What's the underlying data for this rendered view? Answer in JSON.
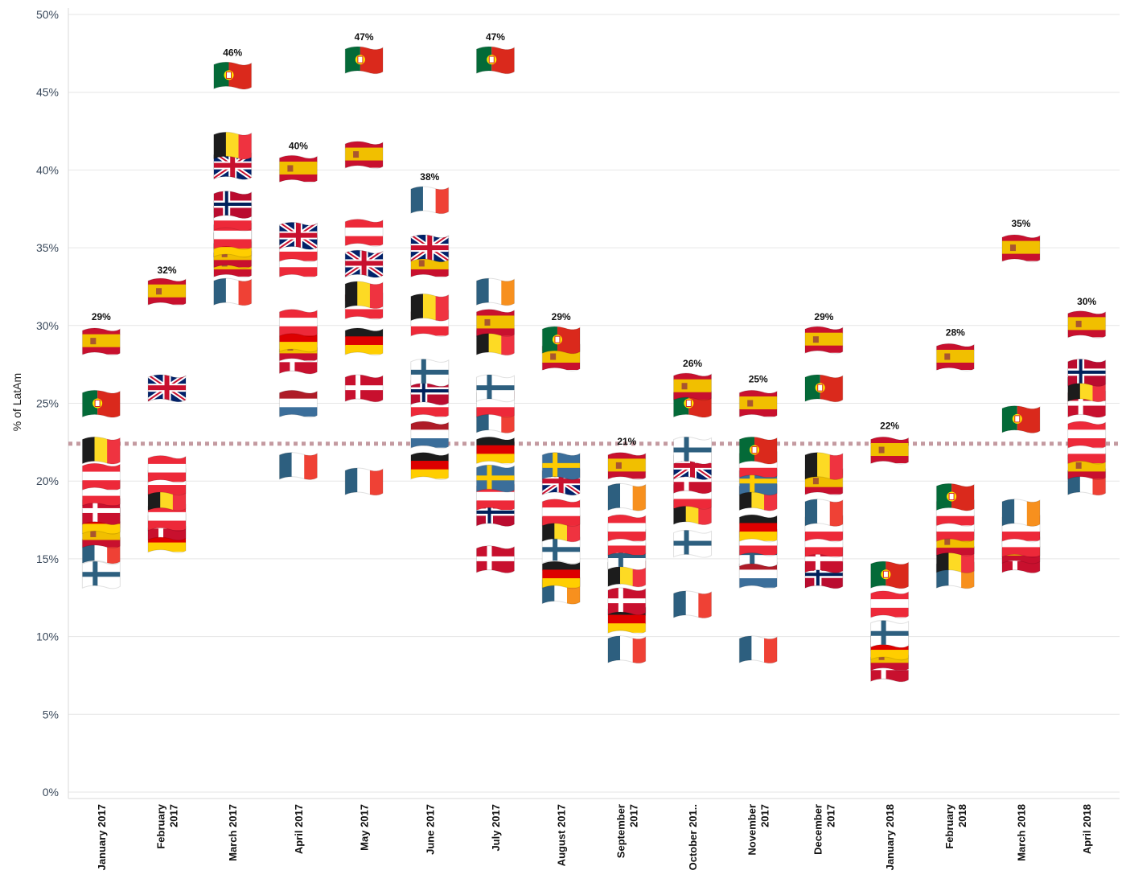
{
  "chart_data": {
    "type": "scatter",
    "ylabel": "% of LatAm",
    "ylim": [
      0,
      50
    ],
    "yticks": [
      "0%",
      "5%",
      "10%",
      "15%",
      "20%",
      "25%",
      "30%",
      "35%",
      "40%",
      "45%",
      "50%"
    ],
    "grid": true,
    "reference_line_value": 22.4,
    "reference_line_color": "#c49aa0",
    "categories": [
      {
        "label": [
          "January 2017"
        ],
        "top_label": "29%",
        "top_value": 29,
        "flags": [
          [
            "es",
            29
          ],
          [
            "pt",
            25
          ],
          [
            "be",
            22
          ],
          [
            "at",
            20.3
          ],
          [
            "at",
            19.3
          ],
          [
            "dk",
            18.1
          ],
          [
            "de",
            17.5
          ],
          [
            "es",
            16.6
          ],
          [
            "fr",
            15.6
          ],
          [
            "fi",
            14
          ]
        ]
      },
      {
        "label": [
          "February",
          "2017"
        ],
        "top_label": "32%",
        "top_value": 32,
        "flags": [
          [
            "es",
            32.2
          ],
          [
            "gb",
            26
          ],
          [
            "at",
            20.8
          ],
          [
            "at",
            20
          ],
          [
            "be",
            19
          ],
          [
            "at",
            17.7
          ],
          [
            "dk",
            17.1
          ],
          [
            "de",
            16.3
          ]
        ]
      },
      {
        "label": [
          "March 2017"
        ],
        "top_label": "46%",
        "top_value": 46,
        "flags": [
          [
            "pt",
            46.1
          ],
          [
            "be",
            41.6
          ],
          [
            "gb",
            40.3
          ],
          [
            "no",
            37.8
          ],
          [
            "at",
            37
          ],
          [
            "at",
            35.8
          ],
          [
            "de",
            35.3
          ],
          [
            "es",
            34.6
          ],
          [
            "es",
            34
          ],
          [
            "fr",
            32.2
          ]
        ]
      },
      {
        "label": [
          "April 2017"
        ],
        "top_label": "40%",
        "top_value": 40,
        "flags": [
          [
            "es",
            40.1
          ],
          [
            "gb",
            35.8
          ],
          [
            "at",
            35
          ],
          [
            "at",
            34
          ],
          [
            "at",
            30.2
          ],
          [
            "de",
            29.2
          ],
          [
            "es",
            28.6
          ],
          [
            "dk",
            27.8
          ],
          [
            "nl",
            25
          ],
          [
            "fr",
            21
          ]
        ]
      },
      {
        "label": [
          "May 2017"
        ],
        "top_label": "47%",
        "top_value": 47,
        "flags": [
          [
            "pt",
            47.1
          ],
          [
            "es",
            41
          ],
          [
            "at",
            36
          ],
          [
            "gb",
            34
          ],
          [
            "be",
            32
          ],
          [
            "at",
            31.3
          ],
          [
            "de",
            29
          ],
          [
            "dk",
            26
          ],
          [
            "fr",
            20
          ]
        ]
      },
      {
        "label": [
          "June 2017"
        ],
        "top_label": "38%",
        "top_value": 38,
        "flags": [
          [
            "fr",
            38.1
          ],
          [
            "gb",
            35
          ],
          [
            "es",
            34
          ],
          [
            "be",
            31.2
          ],
          [
            "at",
            30.2
          ],
          [
            "fi",
            27
          ],
          [
            "no",
            25.8
          ],
          [
            "at",
            25
          ],
          [
            "nl",
            23
          ],
          [
            "de",
            21
          ]
        ]
      },
      {
        "label": [
          "July 2017"
        ],
        "top_label": "47%",
        "top_value": 47,
        "flags": [
          [
            "pt",
            47.1
          ],
          [
            "ie",
            32.2
          ],
          [
            "es",
            30.2
          ],
          [
            "be",
            29
          ],
          [
            "fi",
            26
          ],
          [
            "at",
            25
          ],
          [
            "fr",
            24
          ],
          [
            "de",
            22
          ],
          [
            "se",
            20.2
          ],
          [
            "at",
            19
          ],
          [
            "no",
            18
          ],
          [
            "dk",
            15
          ]
        ]
      },
      {
        "label": [
          "August 2017"
        ],
        "top_label": "29%",
        "top_value": 29,
        "flags": [
          [
            "pt",
            29.1
          ],
          [
            "es",
            28
          ],
          [
            "se",
            21
          ],
          [
            "gb",
            20
          ],
          [
            "at",
            18
          ],
          [
            "be",
            17
          ],
          [
            "fi",
            15.6
          ],
          [
            "de",
            14
          ],
          [
            "ie",
            13
          ]
        ]
      },
      {
        "label": [
          "September",
          "2017"
        ],
        "top_label": "21%",
        "top_value": 21,
        "flags": [
          [
            "es",
            21
          ],
          [
            "ie",
            19
          ],
          [
            "at",
            17
          ],
          [
            "at",
            16.1
          ],
          [
            "fi",
            15.2
          ],
          [
            "be",
            14.1
          ],
          [
            "dk",
            12.3
          ],
          [
            "de",
            11.1
          ],
          [
            "fr",
            9.2
          ]
        ]
      },
      {
        "label": [
          "October 201.."
        ],
        "top_label": "26%",
        "top_value": 26,
        "flags": [
          [
            "es",
            26.1
          ],
          [
            "pt",
            25
          ],
          [
            "fi",
            22
          ],
          [
            "gb",
            21
          ],
          [
            "dk",
            20.1
          ],
          [
            "at",
            19.1
          ],
          [
            "be",
            18.1
          ],
          [
            "fi",
            16
          ],
          [
            "fr",
            12.1
          ]
        ]
      },
      {
        "label": [
          "November",
          "2017"
        ],
        "top_label": "25%",
        "top_value": 25,
        "flags": [
          [
            "es",
            25
          ],
          [
            "pt",
            22
          ],
          [
            "at",
            21.1
          ],
          [
            "se",
            20
          ],
          [
            "be",
            19
          ],
          [
            "de",
            17
          ],
          [
            "at",
            16.1
          ],
          [
            "fi",
            15.4
          ],
          [
            "nl",
            14
          ],
          [
            "fr",
            9.2
          ]
        ]
      },
      {
        "label": [
          "December",
          "2017"
        ],
        "top_label": "29%",
        "top_value": 29,
        "flags": [
          [
            "es",
            29.1
          ],
          [
            "pt",
            26
          ],
          [
            "be",
            21
          ],
          [
            "es",
            20
          ],
          [
            "fr",
            18
          ],
          [
            "at",
            17
          ],
          [
            "at",
            16
          ],
          [
            "dk",
            15
          ],
          [
            "no",
            14
          ]
        ]
      },
      {
        "label": [
          "January 2018"
        ],
        "top_label": "22%",
        "top_value": 22,
        "flags": [
          [
            "es",
            22
          ],
          [
            "pt",
            14
          ],
          [
            "at",
            12.1
          ],
          [
            "fi",
            10.2
          ],
          [
            "de",
            9.4
          ],
          [
            "es",
            8.7
          ],
          [
            "dk",
            8
          ]
        ]
      },
      {
        "label": [
          "February",
          "2018"
        ],
        "top_label": "28%",
        "top_value": 28,
        "flags": [
          [
            "es",
            28
          ],
          [
            "pt",
            19
          ],
          [
            "at",
            18
          ],
          [
            "at",
            17
          ],
          [
            "es",
            16.1
          ],
          [
            "be",
            15
          ],
          [
            "ie",
            14
          ]
        ]
      },
      {
        "label": [
          "March 2018"
        ],
        "top_label": "35%",
        "top_value": 35,
        "flags": [
          [
            "es",
            35
          ],
          [
            "pt",
            24
          ],
          [
            "ie",
            18
          ],
          [
            "at",
            17
          ],
          [
            "at",
            16
          ],
          [
            "es",
            15.6
          ],
          [
            "dk",
            15
          ]
        ]
      },
      {
        "label": [
          "April 2018"
        ],
        "top_label": "30%",
        "top_value": 30,
        "flags": [
          [
            "es",
            30.1
          ],
          [
            "no",
            27
          ],
          [
            "be",
            26
          ],
          [
            "dk",
            25
          ],
          [
            "at",
            23
          ],
          [
            "at",
            22
          ],
          [
            "es",
            21
          ],
          [
            "fr",
            20
          ]
        ]
      }
    ]
  },
  "flag_colors": {
    "es": {
      "type": "h3",
      "colors": [
        "#c8102e",
        "#f1bf00",
        "#c8102e"
      ],
      "weights": [
        1,
        2,
        1
      ],
      "emblem": "#a8562f"
    },
    "pt": {
      "type": "v2",
      "colors": [
        "#046a38",
        "#da291c"
      ],
      "split": 0.4,
      "emblem": "#ffe900"
    },
    "be": {
      "type": "v3",
      "colors": [
        "#1c1c1c",
        "#fdda24",
        "#ef3340"
      ]
    },
    "fr": {
      "type": "v3",
      "colors": [
        "#2d5f7f",
        "#ffffff",
        "#ef4135"
      ]
    },
    "ie": {
      "type": "v3",
      "colors": [
        "#2d5f7f",
        "#ffffff",
        "#f7901e"
      ]
    },
    "de": {
      "type": "h3",
      "colors": [
        "#1c1c1c",
        "#dd0000",
        "#ffce00"
      ],
      "weights": [
        1,
        1,
        1
      ]
    },
    "at": {
      "type": "h3",
      "colors": [
        "#ed2939",
        "#ffffff",
        "#ed2939"
      ],
      "weights": [
        1,
        1,
        1
      ]
    },
    "nl": {
      "type": "h3",
      "colors": [
        "#ae1c28",
        "#ffffff",
        "#3b6e9a"
      ],
      "weights": [
        1,
        1,
        1
      ]
    },
    "dk": {
      "type": "cross",
      "field": "#c8102e",
      "cross": "#ffffff"
    },
    "fi": {
      "type": "cross",
      "field": "#ffffff",
      "cross": "#2d5f7f"
    },
    "se": {
      "type": "cross",
      "field": "#3b6e9a",
      "cross": "#fecc02"
    },
    "no": {
      "type": "cross2",
      "field": "#ba0c2f",
      "cross": "#ffffff",
      "inner": "#00205b"
    },
    "gb": {
      "type": "union",
      "field": "#012169",
      "white": "#ffffff",
      "red": "#c8102e"
    }
  }
}
